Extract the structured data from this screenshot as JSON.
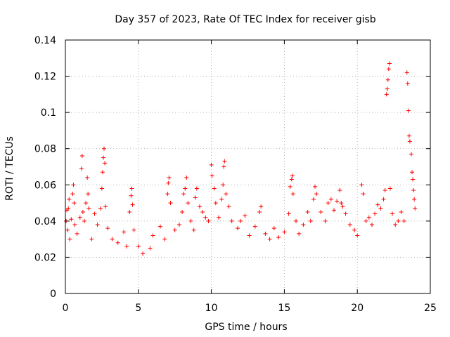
{
  "chart_data": {
    "type": "scatter",
    "title": "Day 357 of 2023, Rate Of TEC Index for receiver gisb",
    "xlabel": "GPS time / hours",
    "ylabel": "ROTI / TECUs",
    "xlim": [
      0,
      25
    ],
    "ylim": [
      0,
      0.14
    ],
    "xticks": [
      0,
      5,
      10,
      15,
      20,
      25
    ],
    "xtick_labels": [
      "0",
      "5",
      "10",
      "15",
      "20",
      "25"
    ],
    "yticks": [
      0,
      0.02,
      0.04,
      0.06,
      0.08,
      0.1,
      0.12,
      0.14
    ],
    "ytick_labels": [
      "0",
      "0.02",
      "0.04",
      "0.06",
      "0.08",
      "0.1",
      "0.12",
      "0.14"
    ],
    "grid": true,
    "legend": "none",
    "marker": "+",
    "color": "#ff0000",
    "series": [
      {
        "points": [
          [
            0.05,
            0.04
          ],
          [
            0.1,
            0.046
          ],
          [
            0.15,
            0.035
          ],
          [
            0.2,
            0.047
          ],
          [
            0.25,
            0.052
          ],
          [
            0.3,
            0.03
          ],
          [
            0.4,
            0.041
          ],
          [
            0.5,
            0.055
          ],
          [
            0.55,
            0.06
          ],
          [
            0.6,
            0.05
          ],
          [
            0.65,
            0.038
          ],
          [
            0.8,
            0.033
          ],
          [
            1.0,
            0.042
          ],
          [
            1.1,
            0.069
          ],
          [
            1.15,
            0.076
          ],
          [
            1.2,
            0.045
          ],
          [
            1.3,
            0.04
          ],
          [
            1.4,
            0.05
          ],
          [
            1.5,
            0.064
          ],
          [
            1.55,
            0.055
          ],
          [
            1.6,
            0.047
          ],
          [
            1.8,
            0.03
          ],
          [
            2.0,
            0.044
          ],
          [
            2.2,
            0.038
          ],
          [
            2.4,
            0.047
          ],
          [
            2.5,
            0.058
          ],
          [
            2.55,
            0.067
          ],
          [
            2.6,
            0.075
          ],
          [
            2.65,
            0.08
          ],
          [
            2.7,
            0.072
          ],
          [
            2.75,
            0.048
          ],
          [
            2.9,
            0.036
          ],
          [
            3.2,
            0.03
          ],
          [
            3.6,
            0.028
          ],
          [
            4.0,
            0.034
          ],
          [
            4.2,
            0.026
          ],
          [
            4.4,
            0.045
          ],
          [
            4.5,
            0.054
          ],
          [
            4.55,
            0.058
          ],
          [
            4.6,
            0.049
          ],
          [
            4.7,
            0.035
          ],
          [
            5.0,
            0.026
          ],
          [
            5.3,
            0.022
          ],
          [
            5.8,
            0.025
          ],
          [
            6.0,
            0.032
          ],
          [
            6.5,
            0.037
          ],
          [
            6.8,
            0.03
          ],
          [
            7.0,
            0.055
          ],
          [
            7.05,
            0.061
          ],
          [
            7.1,
            0.064
          ],
          [
            7.2,
            0.05
          ],
          [
            7.5,
            0.035
          ],
          [
            7.8,
            0.038
          ],
          [
            8.0,
            0.045
          ],
          [
            8.1,
            0.055
          ],
          [
            8.2,
            0.058
          ],
          [
            8.3,
            0.064
          ],
          [
            8.4,
            0.05
          ],
          [
            8.6,
            0.04
          ],
          [
            8.8,
            0.035
          ],
          [
            8.9,
            0.053
          ],
          [
            9.0,
            0.058
          ],
          [
            9.2,
            0.048
          ],
          [
            9.4,
            0.045
          ],
          [
            9.6,
            0.042
          ],
          [
            9.8,
            0.04
          ],
          [
            10.0,
            0.071
          ],
          [
            10.05,
            0.065
          ],
          [
            10.2,
            0.058
          ],
          [
            10.3,
            0.05
          ],
          [
            10.5,
            0.042
          ],
          [
            10.7,
            0.052
          ],
          [
            10.8,
            0.06
          ],
          [
            10.85,
            0.07
          ],
          [
            10.9,
            0.073
          ],
          [
            11.0,
            0.055
          ],
          [
            11.2,
            0.048
          ],
          [
            11.4,
            0.04
          ],
          [
            11.8,
            0.036
          ],
          [
            12.0,
            0.04
          ],
          [
            12.3,
            0.043
          ],
          [
            12.6,
            0.032
          ],
          [
            13.0,
            0.037
          ],
          [
            13.3,
            0.045
          ],
          [
            13.4,
            0.048
          ],
          [
            13.7,
            0.033
          ],
          [
            14.0,
            0.03
          ],
          [
            14.3,
            0.036
          ],
          [
            14.6,
            0.031
          ],
          [
            15.0,
            0.034
          ],
          [
            15.3,
            0.044
          ],
          [
            15.4,
            0.059
          ],
          [
            15.5,
            0.063
          ],
          [
            15.55,
            0.065
          ],
          [
            15.6,
            0.055
          ],
          [
            15.8,
            0.04
          ],
          [
            16.0,
            0.033
          ],
          [
            16.3,
            0.038
          ],
          [
            16.6,
            0.045
          ],
          [
            16.8,
            0.04
          ],
          [
            17.0,
            0.052
          ],
          [
            17.1,
            0.059
          ],
          [
            17.2,
            0.055
          ],
          [
            17.5,
            0.045
          ],
          [
            17.8,
            0.04
          ],
          [
            18.0,
            0.05
          ],
          [
            18.2,
            0.052
          ],
          [
            18.4,
            0.046
          ],
          [
            18.6,
            0.051
          ],
          [
            18.8,
            0.057
          ],
          [
            18.9,
            0.05
          ],
          [
            19.0,
            0.048
          ],
          [
            19.2,
            0.044
          ],
          [
            19.5,
            0.038
          ],
          [
            19.8,
            0.035
          ],
          [
            20.0,
            0.032
          ],
          [
            20.3,
            0.06
          ],
          [
            20.4,
            0.055
          ],
          [
            20.6,
            0.04
          ],
          [
            20.8,
            0.042
          ],
          [
            21.0,
            0.038
          ],
          [
            21.2,
            0.044
          ],
          [
            21.4,
            0.049
          ],
          [
            21.6,
            0.047
          ],
          [
            21.8,
            0.052
          ],
          [
            21.9,
            0.057
          ],
          [
            22.0,
            0.11
          ],
          [
            22.05,
            0.113
          ],
          [
            22.1,
            0.118
          ],
          [
            22.15,
            0.124
          ],
          [
            22.2,
            0.127
          ],
          [
            22.25,
            0.058
          ],
          [
            22.4,
            0.044
          ],
          [
            22.6,
            0.038
          ],
          [
            22.8,
            0.04
          ],
          [
            23.0,
            0.045
          ],
          [
            23.2,
            0.04
          ],
          [
            23.4,
            0.122
          ],
          [
            23.45,
            0.116
          ],
          [
            23.5,
            0.101
          ],
          [
            23.55,
            0.087
          ],
          [
            23.6,
            0.084
          ],
          [
            23.7,
            0.077
          ],
          [
            23.75,
            0.067
          ],
          [
            23.8,
            0.063
          ],
          [
            23.85,
            0.057
          ],
          [
            23.9,
            0.052
          ],
          [
            23.95,
            0.047
          ]
        ]
      }
    ]
  }
}
